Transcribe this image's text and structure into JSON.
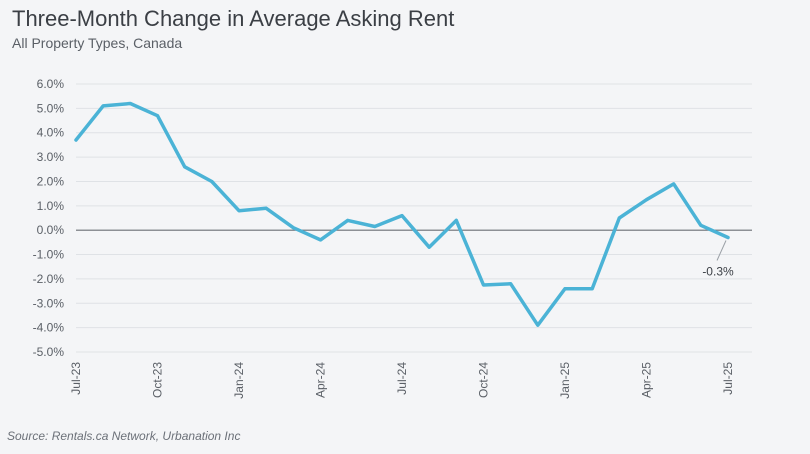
{
  "title": "Three-Month Change in Average Asking Rent",
  "subtitle": "All Property Types, Canada",
  "source": "Source: Rentals.ca Network, Urbanation Inc",
  "chart_data": {
    "type": "line",
    "title": "Three-Month Change in Average Asking Rent",
    "subtitle": "All Property Types, Canada",
    "ylim": [
      -5.0,
      6.0
    ],
    "y_ticks": [
      "6.0%",
      "5.0%",
      "4.0%",
      "3.0%",
      "2.0%",
      "1.0%",
      "0.0%",
      "-1.0%",
      "-2.0%",
      "-3.0%",
      "-4.0%",
      "-5.0%"
    ],
    "y_tick_values": [
      6,
      5,
      4,
      3,
      2,
      1,
      0,
      -1,
      -2,
      -3,
      -4,
      -5
    ],
    "x_ticks": [
      "Jul-23",
      "Oct-23",
      "Jan-24",
      "Apr-24",
      "Jul-24",
      "Oct-24",
      "Jan-25",
      "Apr-25",
      "Jul-25"
    ],
    "grid": true,
    "series_color": "#4bb3d6",
    "series": [
      {
        "x": [
          "Jul-23",
          "Aug-23",
          "Sep-23",
          "Oct-23",
          "Nov-23",
          "Dec-23",
          "Jan-24",
          "Feb-24",
          "Mar-24",
          "Apr-24",
          "May-24",
          "Jun-24",
          "Jul-24",
          "Aug-24",
          "Sep-24",
          "Oct-24",
          "Nov-24",
          "Dec-24",
          "Jan-25",
          "Feb-25",
          "Mar-25",
          "Apr-25",
          "May-25",
          "Jun-25",
          "Jul-25"
        ],
        "values": [
          3.7,
          5.1,
          5.2,
          4.7,
          2.6,
          2.0,
          0.8,
          0.9,
          0.1,
          -0.4,
          0.4,
          0.15,
          0.6,
          -0.7,
          0.4,
          -2.25,
          -2.2,
          -3.9,
          -2.4,
          -2.4,
          0.5,
          1.25,
          1.9,
          0.2,
          -0.3
        ]
      }
    ],
    "annotations": [
      {
        "x": "Jul-25",
        "y": -0.3,
        "text": "-0.3%"
      }
    ]
  }
}
